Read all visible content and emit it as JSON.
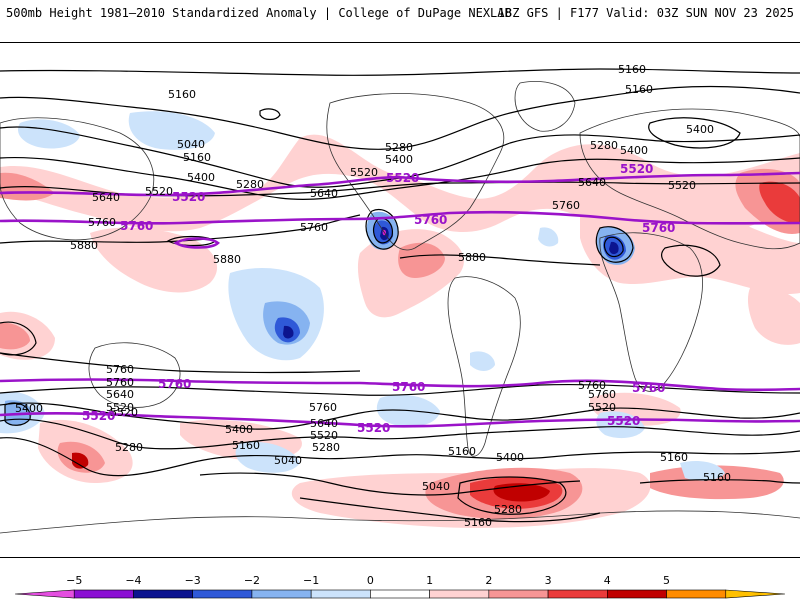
{
  "header": {
    "title": "500mb Height 1981–2010 Standardized Anomaly | College of DuPage NEXLAB",
    "run_info": "18Z GFS | F177 Valid: 03Z SUN NOV 23 2025"
  },
  "colors": {
    "contour_black": "#000000",
    "contour_purple": "#9a13c9",
    "label_purple": "#9a13c9",
    "anom_pos_1": "#ffd2d2",
    "anom_pos_2": "#f79595",
    "anom_pos_3": "#ea3b3b",
    "anom_pos_4": "#c00000",
    "anom_neg_1": "#cce3fb",
    "anom_neg_2": "#86b3f0",
    "anom_neg_3": "#2f59d8",
    "anom_neg_4": "#0c148f",
    "anom_neg_5": "#d81cd0"
  },
  "contour_labels": [
    {
      "id": "l-5160-a",
      "text": "5160"
    },
    {
      "id": "l-5160-b",
      "text": "5160"
    },
    {
      "id": "l-5160-c",
      "text": "5160"
    },
    {
      "id": "l-5040-a",
      "text": "5040"
    },
    {
      "id": "l-5160-d",
      "text": "5160"
    },
    {
      "id": "l-5400-a",
      "text": "5400"
    },
    {
      "id": "l-5280-a",
      "text": "5280"
    },
    {
      "id": "l-5640-a",
      "text": "5640"
    },
    {
      "id": "l-5520-a",
      "text": "5520"
    },
    {
      "id": "l-5640-b",
      "text": "5640"
    },
    {
      "id": "l-5760-a",
      "text": "5760"
    },
    {
      "id": "l-5880-a",
      "text": "5880"
    },
    {
      "id": "l-5880-b",
      "text": "5880"
    },
    {
      "id": "l-5760-b",
      "text": "5760"
    },
    {
      "id": "l-5280-b",
      "text": "5280"
    },
    {
      "id": "l-5400-b",
      "text": "5400"
    },
    {
      "id": "l-5520-b",
      "text": "5520"
    },
    {
      "id": "l-5880-c",
      "text": "5880"
    },
    {
      "id": "l-5760-c",
      "text": "5760"
    },
    {
      "id": "l-5280-c",
      "text": "5280"
    },
    {
      "id": "l-5400-c",
      "text": "5400"
    },
    {
      "id": "l-5520-c",
      "text": "5520"
    },
    {
      "id": "l-5400-d",
      "text": "5400"
    },
    {
      "id": "l-5640-c",
      "text": "5640"
    },
    {
      "id": "l-5760-d",
      "text": "5760"
    },
    {
      "id": "l-5760-e",
      "text": "5760"
    },
    {
      "id": "l-5640-d",
      "text": "5640"
    },
    {
      "id": "l-5520-d",
      "text": "5520"
    },
    {
      "id": "l-5400-e",
      "text": "5400"
    },
    {
      "id": "l-5520-e",
      "text": "5520"
    },
    {
      "id": "l-5280-d",
      "text": "5280"
    },
    {
      "id": "l-5160-e",
      "text": "5160"
    },
    {
      "id": "l-5760-f",
      "text": "5760"
    },
    {
      "id": "l-5400-f",
      "text": "5400"
    },
    {
      "id": "l-5640-e",
      "text": "5640"
    },
    {
      "id": "l-5520-f",
      "text": "5520"
    },
    {
      "id": "l-5280-e",
      "text": "5280"
    },
    {
      "id": "l-5160-f",
      "text": "5160"
    },
    {
      "id": "l-5040-b",
      "text": "5040"
    },
    {
      "id": "l-5760-g",
      "text": "5760"
    },
    {
      "id": "l-5520-g",
      "text": "5520"
    },
    {
      "id": "l-5160-g",
      "text": "5160"
    },
    {
      "id": "l-5400-g",
      "text": "5400"
    },
    {
      "id": "l-5040-c",
      "text": "5040"
    },
    {
      "id": "l-5280-f",
      "text": "5280"
    },
    {
      "id": "l-5160-h",
      "text": "5160"
    },
    {
      "id": "l-5760-h",
      "text": "5760"
    },
    {
      "id": "l-5640-f",
      "text": "5640"
    },
    {
      "id": "l-5520-h",
      "text": "5520"
    },
    {
      "id": "l-5760-i",
      "text": "5760"
    },
    {
      "id": "l-5520-i",
      "text": "5520"
    },
    {
      "id": "l-5160-i",
      "text": "5160"
    },
    {
      "id": "l-5160-j",
      "text": "5160"
    }
  ],
  "legend": {
    "ticks": [
      "−5",
      "−4",
      "−3",
      "−2",
      "−1",
      "0",
      "1",
      "2",
      "3",
      "4",
      "5"
    ],
    "colors": [
      "#e44ee0",
      "#8b0fd3",
      "#0c148f",
      "#2f59d8",
      "#86b3f0",
      "#cce3fb",
      "#ffffff",
      "#ffd2d2",
      "#f79595",
      "#ea3b3b",
      "#c00000",
      "#ff8c00",
      "#ffc000"
    ]
  }
}
